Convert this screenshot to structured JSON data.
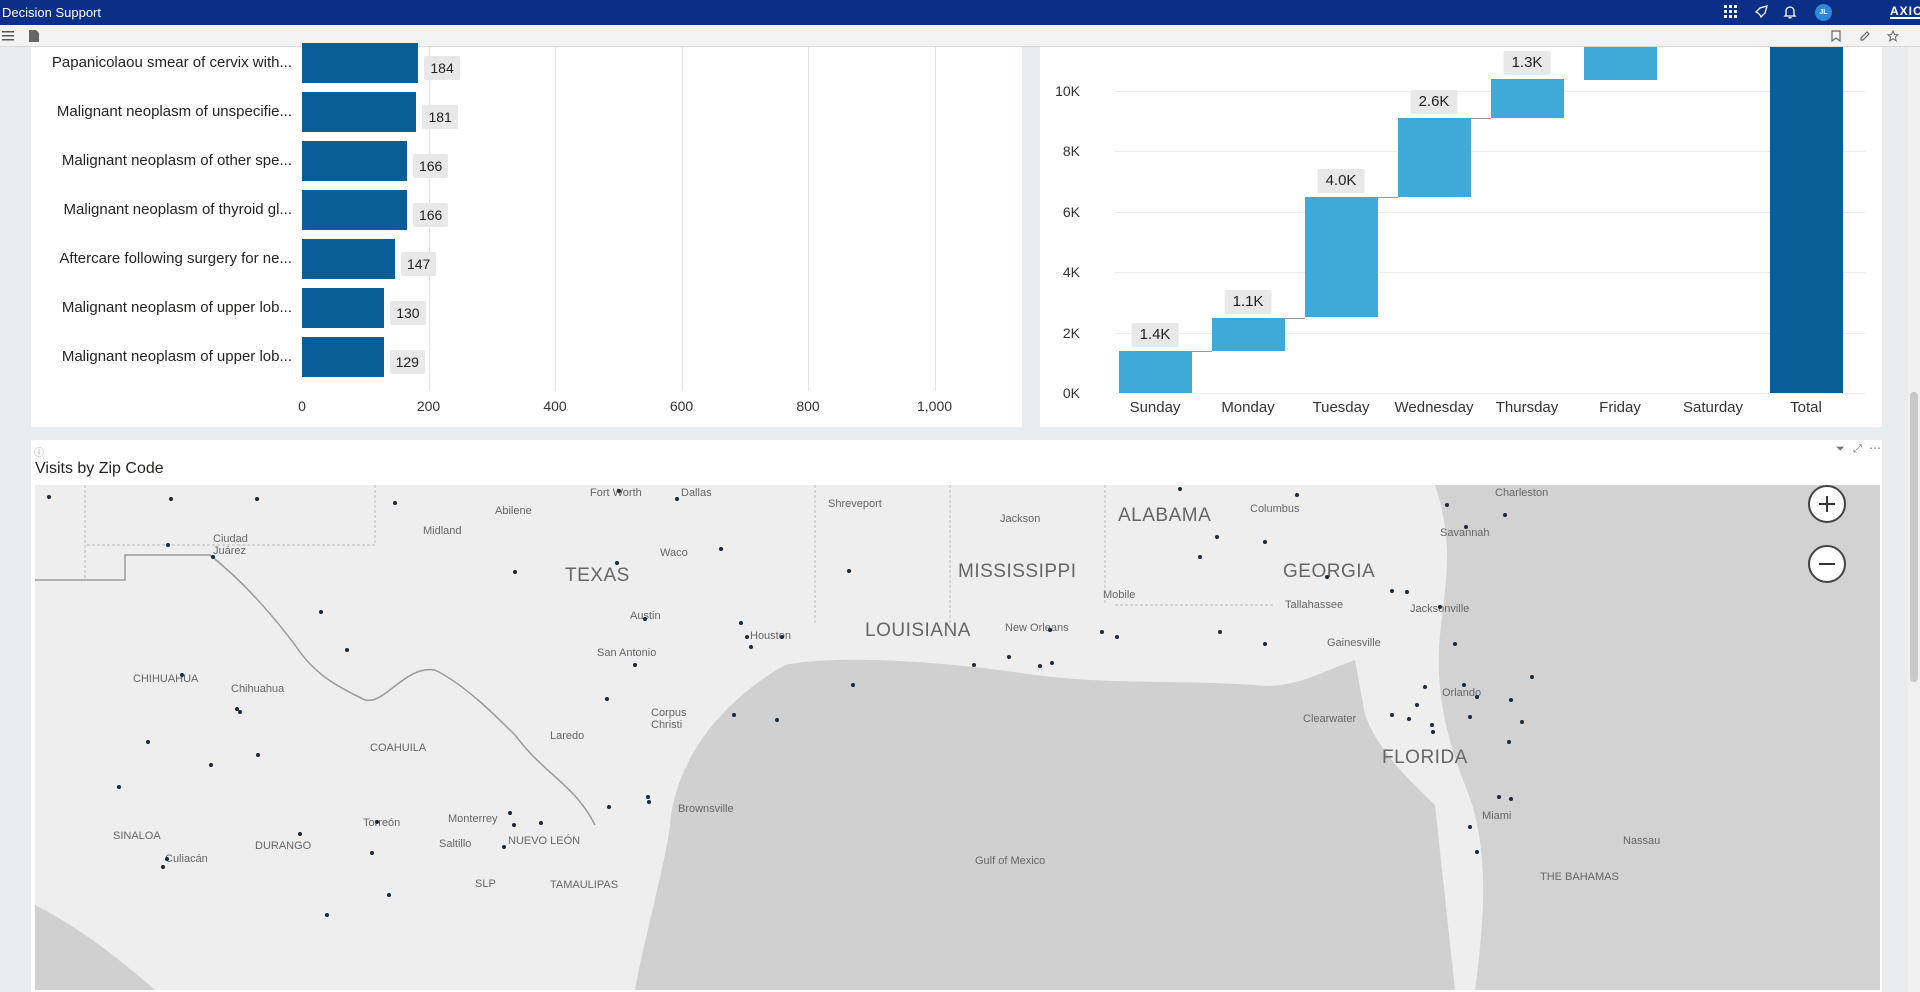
{
  "app": {
    "title": "Decision Support",
    "brand": "AXIO",
    "user_initials": "JL"
  },
  "bar_chart": {
    "chart_data": {
      "type": "bar",
      "orientation": "horizontal",
      "categories": [
        "Papanicolaou smear of cervix with...",
        "Malignant neoplasm of unspecifie...",
        "Malignant neoplasm of other spe...",
        "Malignant neoplasm of thyroid gl...",
        "Aftercare following surgery for ne...",
        "Malignant neoplasm of upper lob...",
        "Malignant neoplasm of upper lob..."
      ],
      "values": [
        184,
        181,
        166,
        166,
        147,
        130,
        129
      ],
      "xlim": [
        0,
        1000
      ],
      "x_ticks": [
        "0",
        "200",
        "400",
        "600",
        "800",
        "1,000"
      ]
    }
  },
  "waterfall_chart": {
    "chart_data": {
      "type": "bar",
      "subtype": "waterfall",
      "categories": [
        "Sunday",
        "Monday",
        "Tuesday",
        "Wednesday",
        "Thursday",
        "Friday",
        "Saturday",
        "Total"
      ],
      "increments": [
        1400,
        1100,
        4000,
        2600,
        1300,
        0,
        0
      ],
      "value_labels": [
        "1.4K",
        "1.1K",
        "4.0K",
        "2.6K",
        "1.3K"
      ],
      "y_ticks": [
        "0K",
        "2K",
        "4K",
        "6K",
        "8K",
        "10K"
      ],
      "ylim": [
        0,
        11000
      ]
    }
  },
  "map_visual": {
    "title": "Visits  by Zip Code",
    "states": [
      "TEXAS",
      "LOUISIANA",
      "MISSISSIPPI",
      "ALABAMA",
      "GEORGIA",
      "FLORIDA"
    ],
    "cities": [
      "Fort Worth",
      "Dallas",
      "Abilene",
      "Midland",
      "Ciudad Juárez",
      "Shreveport",
      "Jackson",
      "Columbus",
      "Charleston",
      "Savannah",
      "Waco",
      "Austin",
      "San Antonio",
      "Houston",
      "New Orleans",
      "Mobile",
      "Tallahassee",
      "Jacksonville",
      "Gainesville",
      "Orlando",
      "Clearwater",
      "Miami",
      "Nassau",
      "Chihuahua",
      "Laredo",
      "Corpus Christi",
      "Brownsville",
      "Monterrey",
      "Saltillo",
      "Torreón",
      "Culiacán",
      "Gulf of Mexico"
    ],
    "regions": [
      "CHIHUAHUA",
      "COAHUILA",
      "SINALOA",
      "DURANGO",
      "NUEVO LEÓN",
      "SLP",
      "TAMAULIPAS",
      "THE BAHAMAS"
    ]
  }
}
